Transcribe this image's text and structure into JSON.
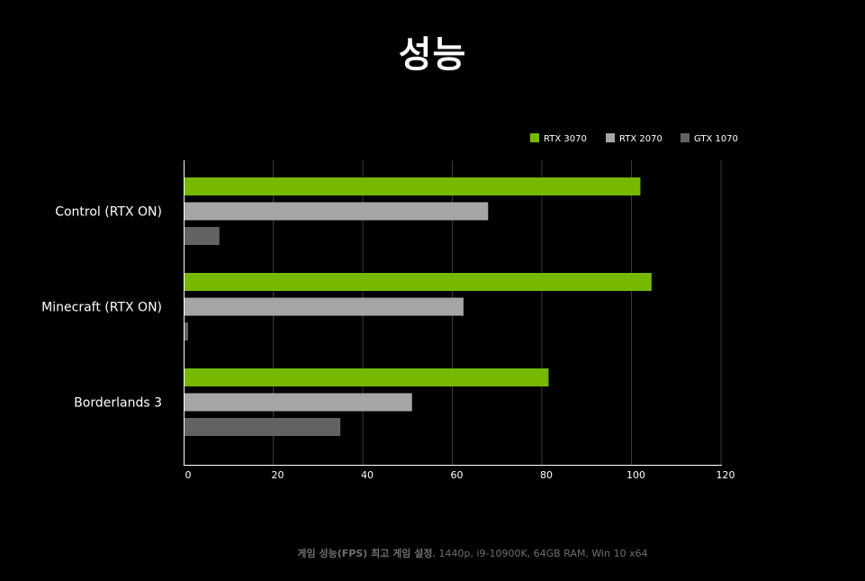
{
  "title": "성능",
  "footnote": {
    "bold": "게임 성능(FPS) 최고 게임 설정",
    "rest": ", 1440p, i9-10900K, 64GB RAM, Win 10 x64"
  },
  "chart_data": {
    "type": "bar",
    "orientation": "horizontal",
    "categories": [
      "Control (RTX ON)",
      "Minecraft (RTX ON)",
      "Borderlands 3"
    ],
    "series": [
      {
        "name": "RTX 3070",
        "color": "#76b900",
        "values": [
          102,
          104.5,
          81.5
        ]
      },
      {
        "name": "RTX 2070",
        "color": "#a6a6a6",
        "values": [
          68,
          62.5,
          51
        ]
      },
      {
        "name": "GTX 1070",
        "color": "#626262",
        "values": [
          8,
          1,
          35
        ]
      }
    ],
    "xlim": [
      0,
      120
    ],
    "xticks": [
      "0",
      "20",
      "40",
      "60",
      "80",
      "100",
      "120"
    ],
    "grid": true,
    "legend_position": "top-right"
  }
}
